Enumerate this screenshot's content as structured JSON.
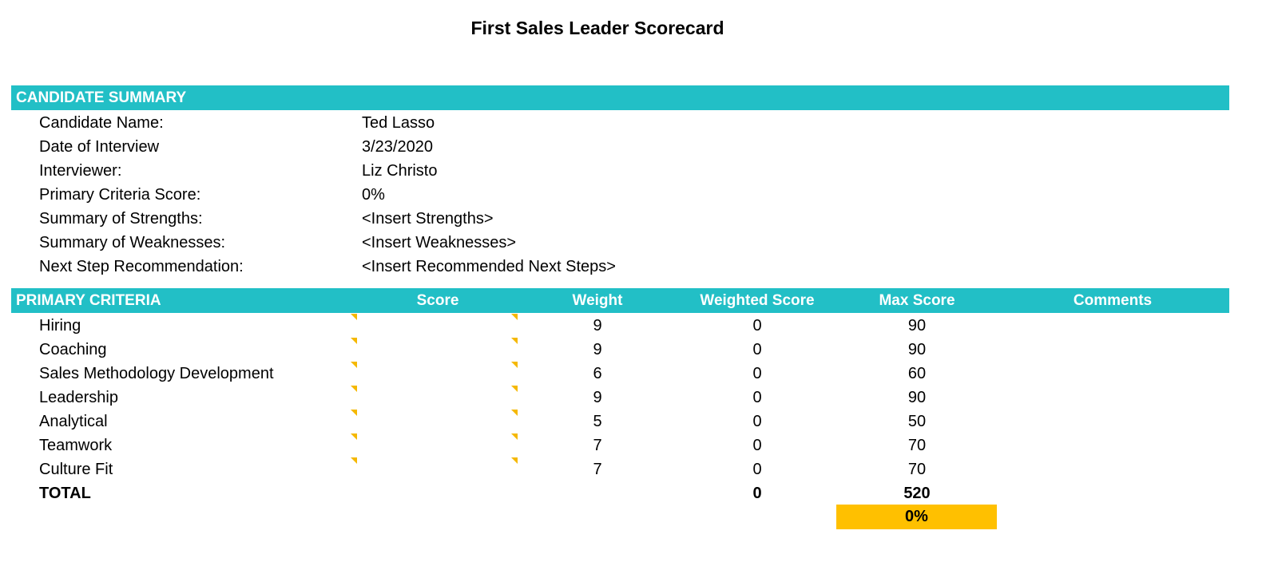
{
  "title": "First Sales Leader Scorecard",
  "candidate_summary": {
    "header": "CANDIDATE SUMMARY",
    "rows": [
      {
        "label": "Candidate Name:",
        "value": "Ted Lasso"
      },
      {
        "label": "Date of Interview",
        "value": "3/23/2020"
      },
      {
        "label": "Interviewer:",
        "value": "Liz Christo"
      },
      {
        "label": "Primary Criteria Score:",
        "value": "0%"
      },
      {
        "label": "Summary of Strengths:",
        "value": "<Insert Strengths>"
      },
      {
        "label": "Summary of Weaknesses:",
        "value": "<Insert Weaknesses>"
      },
      {
        "label": "Next Step Recommendation:",
        "value": "<Insert Recommended Next Steps>"
      }
    ]
  },
  "primary_criteria": {
    "header": "PRIMARY CRITERIA",
    "columns": {
      "score": "Score",
      "weight": "Weight",
      "weighted_score": "Weighted Score",
      "max_score": "Max Score",
      "comments": "Comments"
    },
    "rows": [
      {
        "name": "Hiring",
        "score": "",
        "weight": "9",
        "weighted": "0",
        "max": "90"
      },
      {
        "name": "Coaching",
        "score": "",
        "weight": "9",
        "weighted": "0",
        "max": "90"
      },
      {
        "name": "Sales Methodology Development",
        "score": "",
        "weight": "6",
        "weighted": "0",
        "max": "60"
      },
      {
        "name": "Leadership",
        "score": "",
        "weight": "9",
        "weighted": "0",
        "max": "90"
      },
      {
        "name": "Analytical",
        "score": "",
        "weight": "5",
        "weighted": "0",
        "max": "50"
      },
      {
        "name": "Teamwork",
        "score": "",
        "weight": "7",
        "weighted": "0",
        "max": "70"
      },
      {
        "name": "Culture Fit",
        "score": "",
        "weight": "7",
        "weighted": "0",
        "max": "70"
      }
    ],
    "total": {
      "label": "TOTAL",
      "weighted": "0",
      "max": "520"
    },
    "percentage": "0%"
  },
  "colors": {
    "header_band": "#22bfc6",
    "highlight": "#ffc000",
    "comment_marker": "#f5b800"
  }
}
